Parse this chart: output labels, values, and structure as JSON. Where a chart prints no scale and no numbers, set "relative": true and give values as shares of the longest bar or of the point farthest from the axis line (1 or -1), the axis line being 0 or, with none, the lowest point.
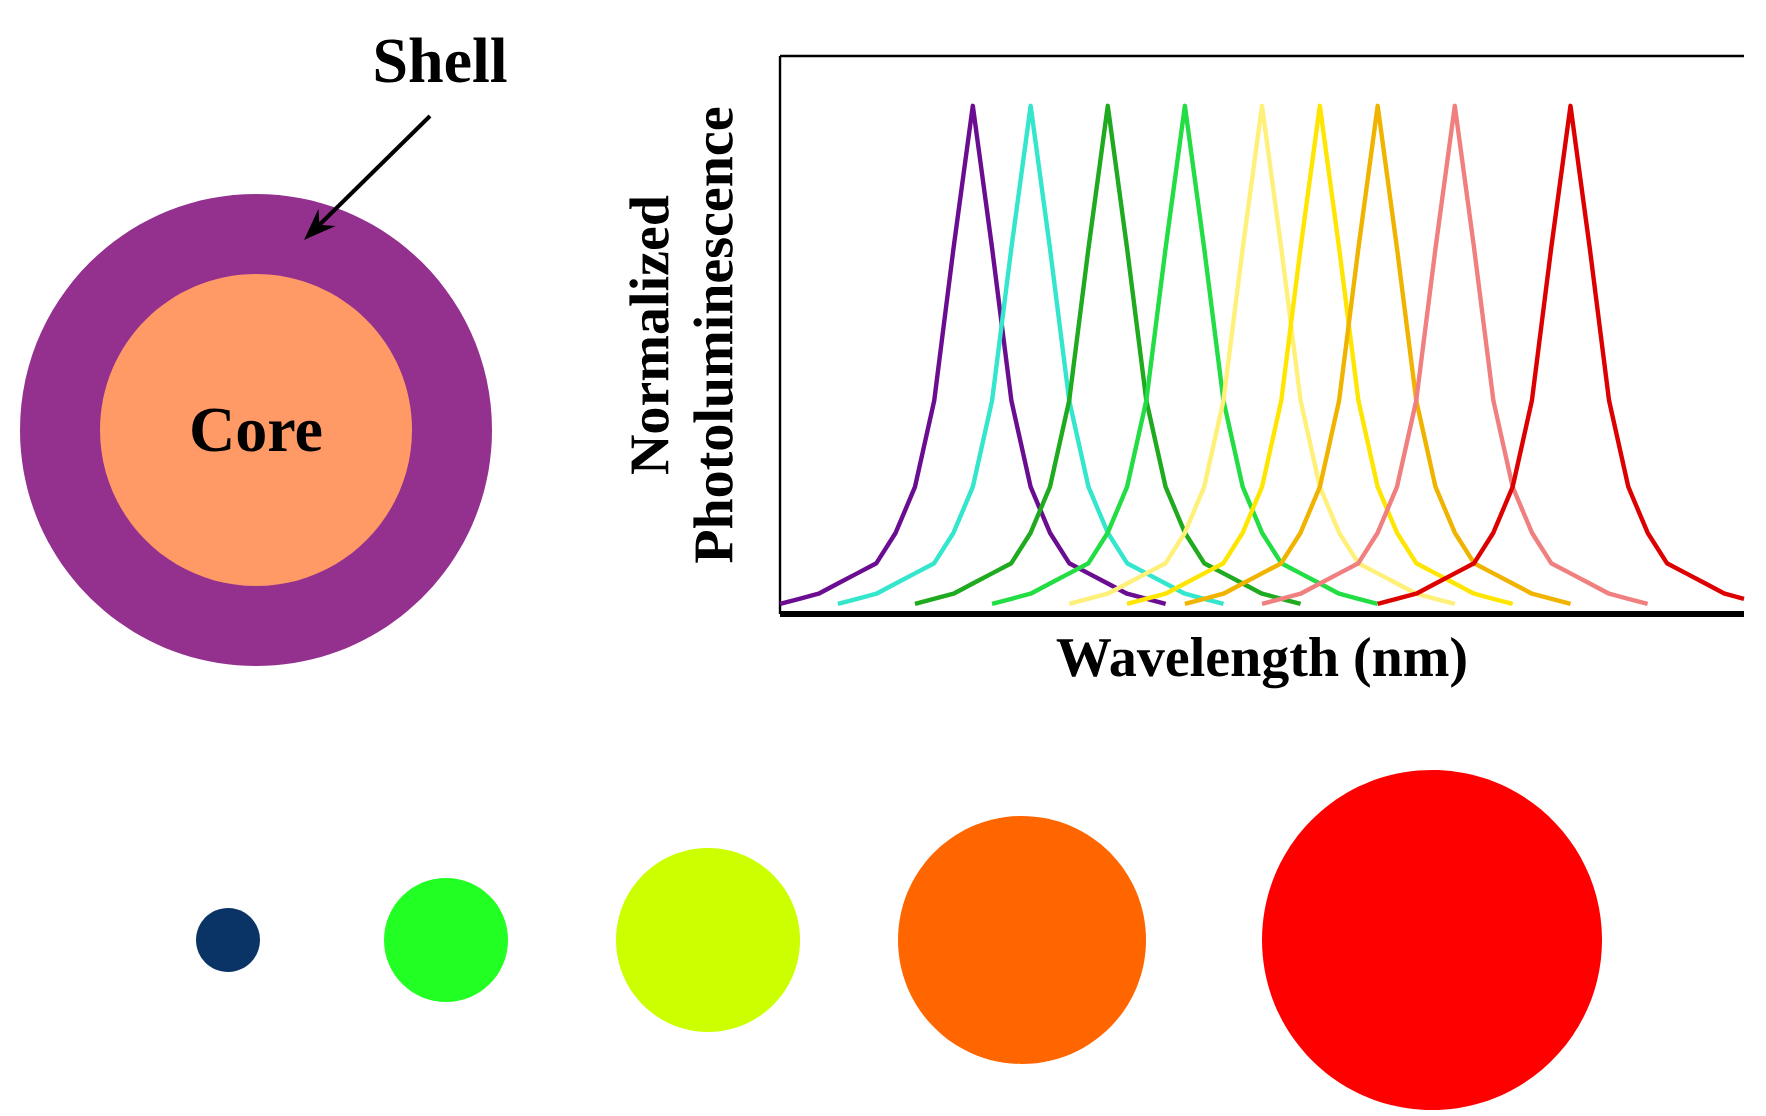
{
  "chart_data": {
    "type": "line",
    "relative": true,
    "xlabel": "Wavelength (nm)",
    "ylabel": "Normalized Photoluminescence",
    "annotations": [
      "Shell",
      "Core"
    ],
    "categories": [
      null,
      null,
      null,
      null,
      null,
      null,
      null,
      null,
      null,
      null,
      null,
      null,
      null,
      null,
      null,
      null,
      null,
      null,
      null,
      null,
      null,
      null,
      null,
      null,
      null,
      null,
      null,
      null,
      null,
      null,
      null,
      null,
      null,
      null,
      null,
      null,
      null,
      null,
      null,
      null,
      null,
      null,
      null,
      null,
      null,
      null,
      null,
      null,
      null,
      null,
      null
    ],
    "series": [
      {
        "color": "#6a0d91",
        "values": [
          0.02,
          0.03,
          0.04,
          0.06,
          0.08,
          0.1,
          0.16,
          0.25,
          0.42,
          0.72,
          1,
          0.72,
          0.42,
          0.25,
          0.16,
          0.1,
          0.08,
          0.06,
          0.04,
          0.03,
          0.02,
          null,
          null,
          null,
          null,
          null,
          null,
          null,
          null,
          null,
          null,
          null,
          null,
          null,
          null,
          null,
          null,
          null,
          null,
          null,
          null,
          null,
          null,
          null,
          null,
          null,
          null,
          null,
          null,
          null,
          null
        ]
      },
      {
        "color": "#33e6cc",
        "values": [
          null,
          null,
          null,
          0.02,
          0.03,
          0.04,
          0.06,
          0.08,
          0.1,
          0.16,
          0.25,
          0.42,
          0.72,
          1,
          0.72,
          0.42,
          0.25,
          0.16,
          0.1,
          0.08,
          0.06,
          0.04,
          0.03,
          0.02,
          null,
          null,
          null,
          null,
          null,
          null,
          null,
          null,
          null,
          null,
          null,
          null,
          null,
          null,
          null,
          null,
          null,
          null,
          null,
          null,
          null,
          null,
          null,
          null,
          null,
          null,
          null
        ]
      },
      {
        "color": "#1faa1f",
        "values": [
          null,
          null,
          null,
          null,
          null,
          null,
          null,
          0.02,
          0.03,
          0.04,
          0.06,
          0.08,
          0.1,
          0.16,
          0.25,
          0.42,
          0.72,
          1,
          0.72,
          0.42,
          0.25,
          0.16,
          0.1,
          0.08,
          0.06,
          0.04,
          0.03,
          0.02,
          null,
          null,
          null,
          null,
          null,
          null,
          null,
          null,
          null,
          null,
          null,
          null,
          null,
          null,
          null,
          null,
          null,
          null,
          null,
          null,
          null,
          null,
          null
        ]
      },
      {
        "color": "#22dd44",
        "values": [
          null,
          null,
          null,
          null,
          null,
          null,
          null,
          null,
          null,
          null,
          null,
          0.02,
          0.03,
          0.04,
          0.06,
          0.08,
          0.1,
          0.16,
          0.25,
          0.42,
          0.72,
          1,
          0.72,
          0.42,
          0.25,
          0.16,
          0.1,
          0.08,
          0.06,
          0.04,
          0.03,
          0.02,
          null,
          null,
          null,
          null,
          null,
          null,
          null,
          null,
          null,
          null,
          null,
          null,
          null,
          null,
          null,
          null,
          null,
          null,
          null
        ]
      },
      {
        "color": "#fff07a",
        "values": [
          null,
          null,
          null,
          null,
          null,
          null,
          null,
          null,
          null,
          null,
          null,
          null,
          null,
          null,
          null,
          0.02,
          0.03,
          0.04,
          0.06,
          0.08,
          0.1,
          0.16,
          0.25,
          0.42,
          0.72,
          1,
          0.72,
          0.42,
          0.25,
          0.16,
          0.1,
          0.08,
          0.06,
          0.04,
          0.03,
          0.02,
          null,
          null,
          null,
          null,
          null,
          null,
          null,
          null,
          null,
          null,
          null,
          null,
          null,
          null,
          null
        ]
      },
      {
        "color": "#ffe600",
        "values": [
          null,
          null,
          null,
          null,
          null,
          null,
          null,
          null,
          null,
          null,
          null,
          null,
          null,
          null,
          null,
          null,
          null,
          null,
          0.02,
          0.03,
          0.04,
          0.06,
          0.08,
          0.1,
          0.16,
          0.25,
          0.42,
          0.72,
          1,
          0.72,
          0.42,
          0.25,
          0.16,
          0.1,
          0.08,
          0.06,
          0.04,
          0.03,
          0.02,
          null,
          null,
          null,
          null,
          null,
          null,
          null,
          null,
          null,
          null,
          null,
          null
        ]
      },
      {
        "color": "#f0b400",
        "values": [
          null,
          null,
          null,
          null,
          null,
          null,
          null,
          null,
          null,
          null,
          null,
          null,
          null,
          null,
          null,
          null,
          null,
          null,
          null,
          null,
          null,
          0.02,
          0.03,
          0.04,
          0.06,
          0.08,
          0.1,
          0.16,
          0.25,
          0.42,
          0.72,
          1,
          0.72,
          0.42,
          0.25,
          0.16,
          0.1,
          0.08,
          0.06,
          0.04,
          0.03,
          0.02,
          null,
          null,
          null,
          null,
          null,
          null,
          null,
          null,
          null
        ]
      },
      {
        "color": "#f08080",
        "values": [
          null,
          null,
          null,
          null,
          null,
          null,
          null,
          null,
          null,
          null,
          null,
          null,
          null,
          null,
          null,
          null,
          null,
          null,
          null,
          null,
          null,
          null,
          null,
          null,
          null,
          0.02,
          0.03,
          0.04,
          0.06,
          0.08,
          0.1,
          0.16,
          0.25,
          0.42,
          0.72,
          1,
          0.72,
          0.42,
          0.25,
          0.16,
          0.1,
          0.08,
          0.06,
          0.04,
          0.03,
          0.02,
          null,
          null,
          null,
          null,
          null
        ]
      },
      {
        "color": "#dd0000",
        "values": [
          null,
          null,
          null,
          null,
          null,
          null,
          null,
          null,
          null,
          null,
          null,
          null,
          null,
          null,
          null,
          null,
          null,
          null,
          null,
          null,
          null,
          null,
          null,
          null,
          null,
          null,
          null,
          null,
          null,
          null,
          null,
          0.02,
          0.03,
          0.04,
          0.06,
          0.08,
          0.1,
          0.16,
          0.25,
          0.42,
          0.72,
          1,
          0.72,
          0.42,
          0.25,
          0.16,
          0.1,
          0.08,
          0.06,
          0.04,
          0.03
        ]
      }
    ]
  }
}
